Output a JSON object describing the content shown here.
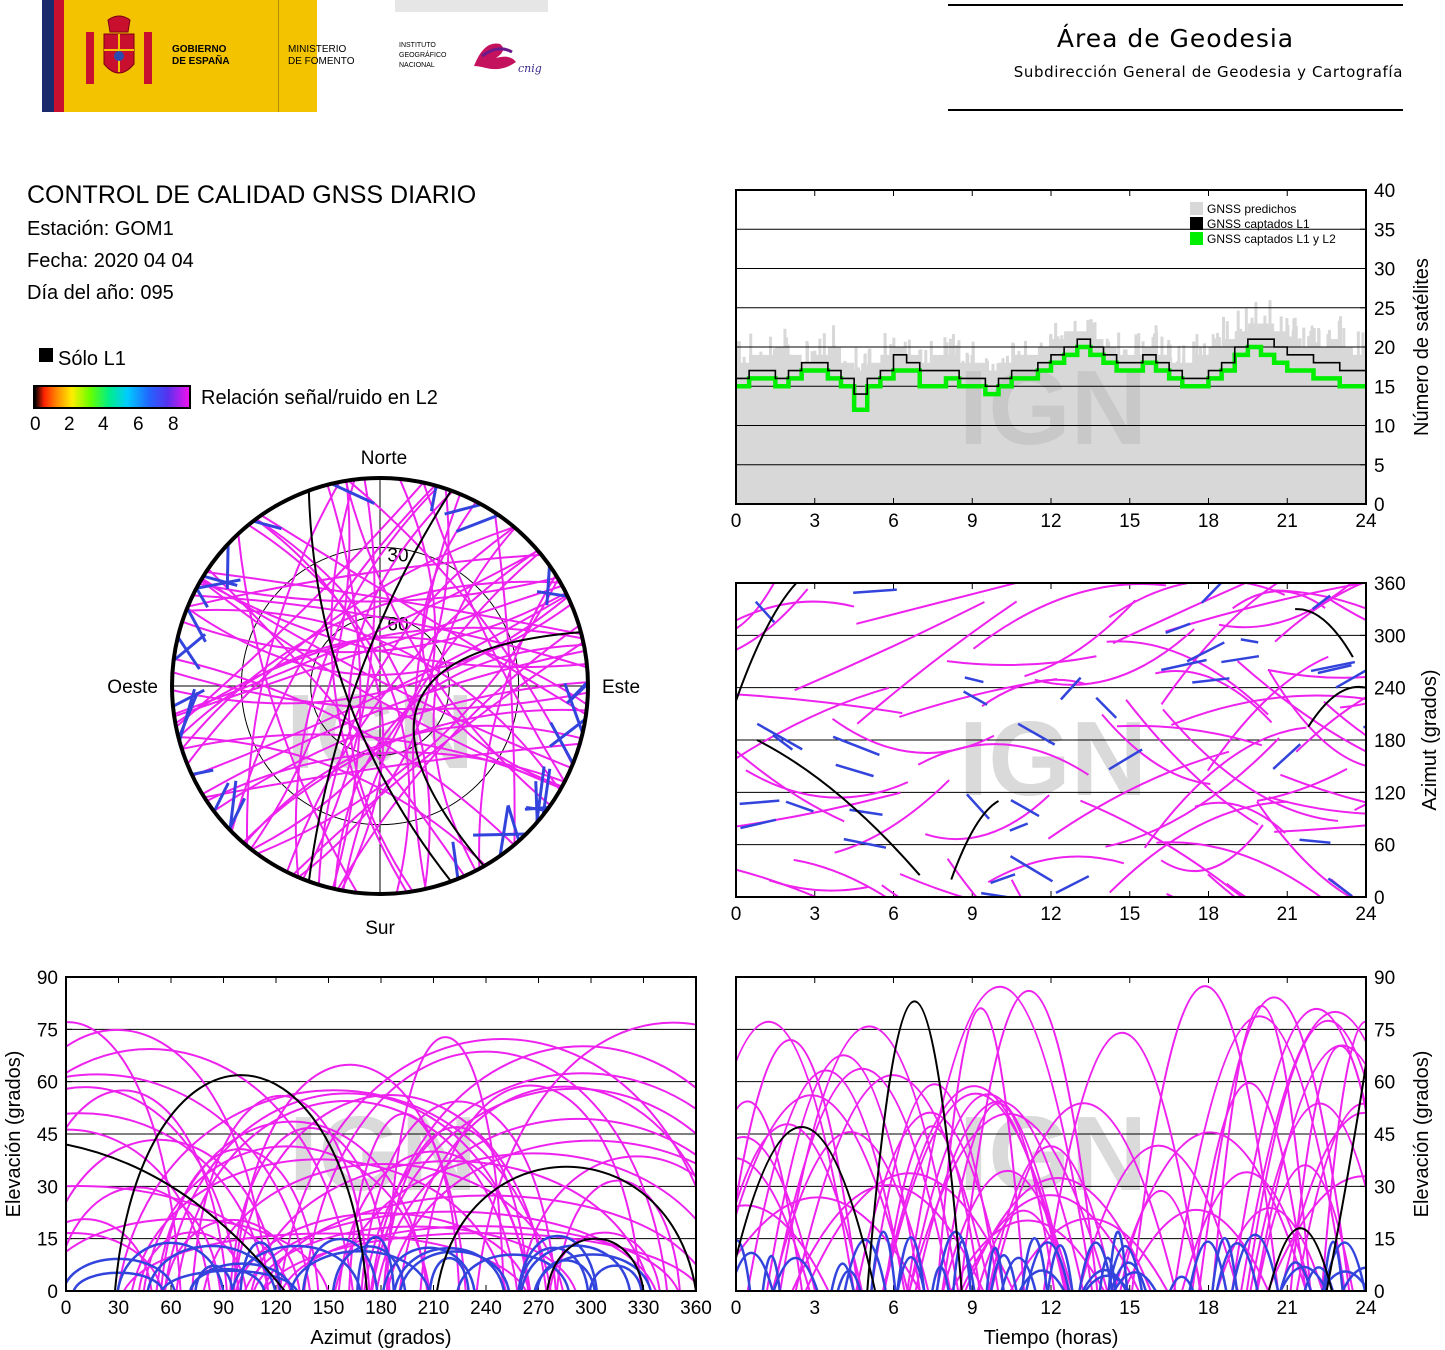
{
  "header": {
    "gov_line1": "GOBIERNO",
    "gov_line2": "DE ESPAÑA",
    "min_line1": "MINISTERIO",
    "min_line2": "DE FOMENTO",
    "ign_line1": "INSTITUTO",
    "ign_line2": "GEOGRÁFICO",
    "ign_line3": "NACIONAL",
    "cnig": "cnig",
    "area_title": "Área de Geodesia",
    "area_subtitle": "Subdirección General de Geodesia y Cartografía"
  },
  "info": {
    "title": "CONTROL DE CALIDAD GNSS DIARIO",
    "station": "Estación: GOM1",
    "date": "Fecha: 2020 04 04",
    "doy": "Día del año: 095"
  },
  "legend": {
    "only_l1": "Sólo L1",
    "snr_label": "Relación señal/ruido en L2",
    "snr_ticks": [
      "0",
      "2",
      "4",
      "6",
      "8"
    ]
  },
  "watermark": "IGN",
  "colors": {
    "track": "#ee22ee",
    "track_low": "#3344dd",
    "only_l1": "#000000",
    "predicted": "#d8d8d8",
    "l1l2": "#00ee00"
  },
  "chart_data": [
    {
      "type": "line",
      "id": "satellite-count",
      "ylabel": "Número de satélites",
      "xlim": [
        0,
        24
      ],
      "ylim": [
        0,
        40
      ],
      "x_ticks": [
        "0",
        "3",
        "6",
        "9",
        "12",
        "15",
        "18",
        "21",
        "24"
      ],
      "y_ticks": [
        "0",
        "5",
        "10",
        "15",
        "20",
        "25",
        "30",
        "35",
        "40"
      ],
      "legend": [
        "GNSS predichos",
        "GNSS captados L1",
        "GNSS captados L1 y L2"
      ],
      "legend_position": "top-right",
      "grid": true,
      "x": [
        0,
        0.5,
        1,
        1.5,
        2,
        2.5,
        3,
        3.5,
        4,
        4.5,
        5,
        5.5,
        6,
        6.5,
        7,
        7.5,
        8,
        8.5,
        9,
        9.5,
        10,
        10.5,
        11,
        11.5,
        12,
        12.5,
        13,
        13.5,
        14,
        14.5,
        15,
        15.5,
        16,
        16.5,
        17,
        17.5,
        18,
        18.5,
        19,
        19.5,
        20,
        20.5,
        21,
        21.5,
        22,
        22.5,
        23,
        23.5,
        24
      ],
      "series": [
        {
          "name": "GNSS predichos",
          "values": [
            18,
            19,
            19,
            20,
            19,
            18,
            19,
            20,
            18,
            17,
            18,
            19,
            20,
            19,
            18,
            19,
            19,
            18,
            18,
            17,
            18,
            19,
            19,
            20,
            21,
            22,
            22,
            21,
            20,
            19,
            19,
            20,
            19,
            18,
            18,
            19,
            20,
            21,
            22,
            23,
            23,
            22,
            21,
            20,
            20,
            21,
            20,
            19,
            18
          ]
        },
        {
          "name": "GNSS captados L1",
          "values": [
            16,
            17,
            17,
            16,
            17,
            18,
            18,
            17,
            16,
            14,
            16,
            17,
            19,
            18,
            17,
            17,
            17,
            16,
            16,
            15,
            16,
            17,
            17,
            18,
            19,
            20,
            21,
            20,
            19,
            18,
            18,
            19,
            18,
            17,
            16,
            16,
            17,
            18,
            20,
            21,
            21,
            20,
            19,
            19,
            18,
            18,
            17,
            17,
            16
          ]
        },
        {
          "name": "GNSS captados L1 y L2",
          "values": [
            15,
            16,
            16,
            15,
            16,
            17,
            17,
            16,
            15,
            12,
            15,
            16,
            17,
            17,
            15,
            15,
            16,
            15,
            15,
            14,
            15,
            16,
            16,
            17,
            18,
            19,
            20,
            19,
            18,
            17,
            17,
            18,
            17,
            16,
            15,
            15,
            16,
            17,
            19,
            20,
            19,
            18,
            17,
            17,
            16,
            16,
            15,
            15,
            15
          ]
        }
      ]
    },
    {
      "type": "scatter",
      "id": "azimuth-vs-time",
      "ylabel": "Azimut (grados)",
      "xlim": [
        0,
        24
      ],
      "ylim": [
        0,
        360
      ],
      "x_ticks": [
        "0",
        "3",
        "6",
        "9",
        "12",
        "15",
        "18",
        "21",
        "24"
      ],
      "y_ticks": [
        "0",
        "60",
        "120",
        "180",
        "240",
        "300",
        "360"
      ],
      "grid": true
    },
    {
      "type": "scatter",
      "id": "elevation-vs-azimuth",
      "xlabel": "Azimut (grados)",
      "ylabel": "Elevación (grados)",
      "xlim": [
        0,
        360
      ],
      "ylim": [
        0,
        90
      ],
      "x_ticks": [
        "0",
        "30",
        "60",
        "90",
        "120",
        "150",
        "180",
        "210",
        "240",
        "270",
        "300",
        "330",
        "360"
      ],
      "y_ticks": [
        "0",
        "15",
        "30",
        "45",
        "60",
        "75",
        "90"
      ],
      "grid": true
    },
    {
      "type": "scatter",
      "id": "elevation-vs-time",
      "xlabel": "Tiempo (horas)",
      "ylabel": "Elevación (grados)",
      "xlim": [
        0,
        24
      ],
      "ylim": [
        0,
        90
      ],
      "x_ticks": [
        "0",
        "3",
        "6",
        "9",
        "12",
        "15",
        "18",
        "21",
        "24"
      ],
      "y_ticks": [
        "0",
        "15",
        "30",
        "45",
        "60",
        "75",
        "90"
      ],
      "grid": true
    },
    {
      "type": "scatter",
      "id": "skyplot",
      "directions": {
        "north": "Norte",
        "south": "Sur",
        "west": "Oeste",
        "east": "Este"
      },
      "rings": [
        "30",
        "60"
      ]
    }
  ]
}
